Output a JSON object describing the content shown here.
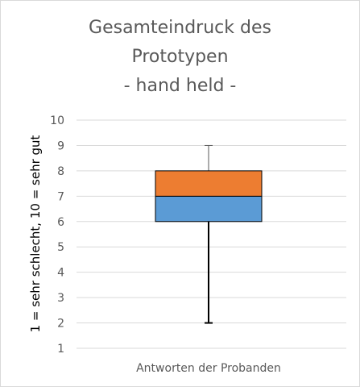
{
  "chart_data": {
    "type": "boxplot",
    "title_lines": [
      "Gesamteindruck des",
      "Prototypen",
      "- hand held -"
    ],
    "ylabel": "1 = sehr schlecht, 10 = sehr gut",
    "categories": [
      "Antworten der Probanden"
    ],
    "ylim": [
      1,
      10
    ],
    "yticks": [
      "1",
      "2",
      "3",
      "4",
      "5",
      "6",
      "7",
      "8",
      "9",
      "10"
    ],
    "grid": true,
    "box": {
      "min": 2,
      "q1": 6,
      "median": 7,
      "q3": 8,
      "max": 9
    },
    "colors": {
      "lower_box": "#5b9bd5",
      "upper_box": "#ed7d31",
      "whisker": "#000000",
      "grid": "#d9d9d9",
      "text": "#595959"
    }
  }
}
